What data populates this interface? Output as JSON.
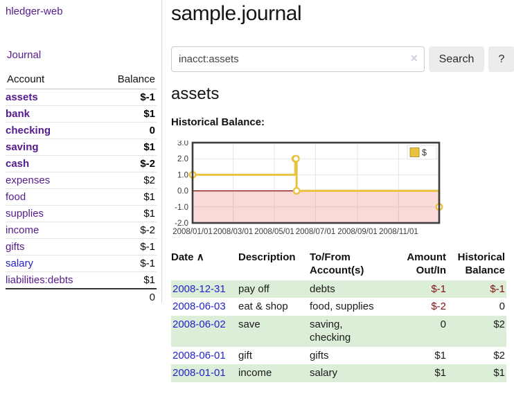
{
  "brand": "hledger-web",
  "sidebar": {
    "journal_link": "Journal",
    "accounts_table": {
      "headers": {
        "account": "Account",
        "balance": "Balance"
      },
      "rows": [
        {
          "name": "assets",
          "balance": "$-1"
        },
        {
          "name": "bank",
          "balance": "$1"
        },
        {
          "name": "checking",
          "balance": "0"
        },
        {
          "name": "saving",
          "balance": "$1"
        },
        {
          "name": "cash",
          "balance": "$-2"
        },
        {
          "name": "expenses",
          "balance": "$2"
        },
        {
          "name": "food",
          "balance": "$1"
        },
        {
          "name": "supplies",
          "balance": "$1"
        },
        {
          "name": "income",
          "balance": "$-2"
        },
        {
          "name": "gifts",
          "balance": "$-1"
        },
        {
          "name": "salary",
          "balance": "$-1"
        },
        {
          "name": "liabilities:debts",
          "balance": "$1"
        }
      ],
      "total": "0"
    }
  },
  "main": {
    "title": "sample.journal",
    "search": {
      "query": "inacct:assets",
      "clear_icon": "×",
      "button": "Search",
      "help": "?"
    },
    "account_heading": "assets",
    "chart_title": "Historical Balance:"
  },
  "chart_data": {
    "type": "line",
    "title": "Historical Balance:",
    "legend": "$",
    "legend_position": "top-right",
    "line_color": "#e9c240",
    "grid": true,
    "x_range": [
      "2008-01-01",
      "2008-12-31"
    ],
    "ylim": [
      -2,
      3
    ],
    "y_ticks": [
      3,
      2,
      1,
      0,
      -1,
      -2
    ],
    "x_ticks": [
      "2008/01/01",
      "2008/03/01",
      "2008/05/01",
      "2008/07/01",
      "2008/09/01",
      "2008/11/01"
    ],
    "series": [
      {
        "name": "$",
        "style": "step",
        "points": [
          [
            "2008-01-01",
            1
          ],
          [
            "2008-06-01",
            2
          ],
          [
            "2008-06-02",
            2
          ],
          [
            "2008-06-03",
            0
          ],
          [
            "2008-12-31",
            -1
          ]
        ]
      }
    ]
  },
  "register": {
    "sort_icon": "∧",
    "columns": [
      {
        "line1": "Date",
        "line2": ""
      },
      {
        "line1": "Description",
        "line2": ""
      },
      {
        "line1": "To/From",
        "line2": "Account(s)"
      },
      {
        "line1": "Amount",
        "line2": "Out/In"
      },
      {
        "line1": "Historical",
        "line2": "Balance"
      }
    ],
    "rows": [
      {
        "date": "2008-12-31",
        "description": "pay off",
        "accounts1": "debts",
        "accounts2": "",
        "amount": "$-1",
        "balance": "$-1"
      },
      {
        "date": "2008-06-03",
        "description": "eat & shop",
        "accounts1": "food, supplies",
        "accounts2": "",
        "amount": "$-2",
        "balance": "0"
      },
      {
        "date": "2008-06-02",
        "description": "save",
        "accounts1": "saving,",
        "accounts2": "checking",
        "amount": "0",
        "balance": "$2"
      },
      {
        "date": "2008-06-01",
        "description": "gift",
        "accounts1": "gifts",
        "accounts2": "",
        "amount": "$1",
        "balance": "$2"
      },
      {
        "date": "2008-01-01",
        "description": "income",
        "accounts1": "salary",
        "accounts2": "",
        "amount": "$1",
        "balance": "$1"
      }
    ]
  }
}
